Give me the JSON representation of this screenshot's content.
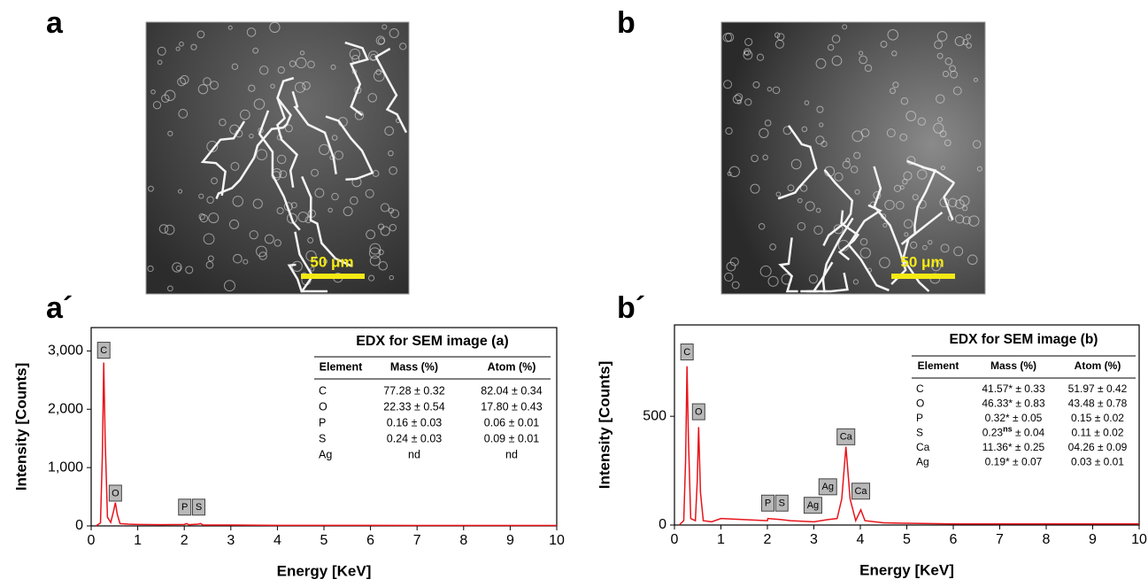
{
  "panels": [
    "a",
    "b",
    "a´",
    "b´"
  ],
  "sem_images": [
    {
      "scale_bar": "50 μm"
    },
    {
      "scale_bar": "50 μm"
    }
  ],
  "chart_data": [
    {
      "type": "line",
      "x_label": "Energy [KeV]",
      "y_label": "Intensity [Counts]",
      "color": "#e8141b",
      "x": [
        0.1,
        0.2,
        0.24,
        0.27,
        0.3,
        0.35,
        0.42,
        0.48,
        0.52,
        0.56,
        0.62,
        0.8,
        1.0,
        1.5,
        2.0,
        2.05,
        2.1,
        2.3,
        2.35,
        2.4,
        3,
        4,
        5,
        6,
        7,
        8,
        9,
        10
      ],
      "values": [
        0,
        50,
        1200,
        2800,
        1500,
        150,
        60,
        250,
        400,
        200,
        40,
        30,
        25,
        20,
        25,
        40,
        20,
        30,
        40,
        15,
        15,
        10,
        10,
        10,
        8,
        8,
        8,
        8
      ],
      "xlim": [
        0,
        10
      ],
      "xticks": [
        0,
        1,
        2,
        3,
        4,
        5,
        6,
        7,
        8,
        9,
        10
      ],
      "ylim": [
        0,
        3400
      ],
      "yticks": [
        0,
        {
          "value": 1000,
          "label": "1,000"
        },
        {
          "value": 2000,
          "label": "2,000"
        },
        {
          "value": 3000,
          "label": "3,000"
        }
      ],
      "annotations": [
        {
          "text": "C",
          "x": 0.27,
          "y": 2860
        },
        {
          "text": "O",
          "x": 0.52,
          "y": 410
        },
        {
          "text": "P",
          "x": 2.01,
          "y": 170
        },
        {
          "text": "S",
          "x": 2.31,
          "y": 170
        }
      ],
      "table": {
        "title": "EDX for SEM image (a)",
        "columns": [
          "Element",
          "Mass (%)",
          "Atom (%)"
        ],
        "rows": [
          [
            "C",
            "77.28 ± 0.32",
            "82.04 ± 0.34"
          ],
          [
            "O",
            "22.33 ± 0.54",
            "17.80 ± 0.43"
          ],
          [
            "P",
            "0.16 ± 0.03",
            "0.06 ± 0.01"
          ],
          [
            "S",
            "0.24 ± 0.03",
            "0.09 ± 0.01"
          ],
          [
            "Ag",
            "nd",
            "nd"
          ]
        ]
      }
    },
    {
      "type": "line",
      "x_label": "Energy [KeV]",
      "y_label": "Intensity [Counts]",
      "color": "#e8141b",
      "x": [
        0.1,
        0.2,
        0.24,
        0.27,
        0.3,
        0.35,
        0.45,
        0.49,
        0.52,
        0.56,
        0.62,
        0.8,
        1.0,
        1.5,
        2.0,
        2.01,
        2.3,
        2.5,
        3.0,
        3.3,
        3.5,
        3.6,
        3.69,
        3.78,
        3.9,
        4.01,
        4.1,
        4.5,
        5,
        6,
        7,
        8,
        9,
        10
      ],
      "values": [
        0,
        20,
        300,
        730,
        400,
        30,
        20,
        200,
        450,
        150,
        20,
        15,
        30,
        25,
        20,
        30,
        25,
        20,
        15,
        25,
        30,
        120,
        360,
        120,
        20,
        70,
        20,
        10,
        8,
        5,
        5,
        5,
        5,
        5
      ],
      "xlim": [
        0,
        10
      ],
      "xticks": [
        0,
        1,
        2,
        3,
        4,
        5,
        6,
        7,
        8,
        9,
        10
      ],
      "ylim": [
        0,
        920
      ],
      "yticks": [
        0,
        500
      ],
      "annotations": [
        {
          "text": "C",
          "x": 0.27,
          "y": 755
        },
        {
          "text": "O",
          "x": 0.52,
          "y": 480
        },
        {
          "text": "P",
          "x": 2.01,
          "y": 60
        },
        {
          "text": "S",
          "x": 2.31,
          "y": 60
        },
        {
          "text": "Ag",
          "x": 2.98,
          "y": 50
        },
        {
          "text": "Ag",
          "x": 3.3,
          "y": 135
        },
        {
          "text": "Ca",
          "x": 3.69,
          "y": 365
        },
        {
          "text": "Ca",
          "x": 4.01,
          "y": 115
        }
      ],
      "table": {
        "title": "EDX for SEM image (b)",
        "columns": [
          "Element",
          "Mass (%)",
          "Atom (%)"
        ],
        "rows": [
          [
            "C",
            "41.57* ± 0.33",
            "51.97 ± 0.42"
          ],
          [
            "O",
            "46.33* ± 0.83",
            "43.48 ± 0.78"
          ],
          [
            "P",
            "0.32* ± 0.05",
            "0.15 ± 0.02"
          ],
          [
            "S",
            [
              "0.23",
              "ns",
              " ± 0.04"
            ],
            "0.11 ± 0.02"
          ],
          [
            "Ca",
            "11.36* ± 0.25",
            "04.26 ± 0.09"
          ],
          [
            "Ag",
            "0.19* ± 0.07",
            "0.03 ± 0.01"
          ]
        ]
      }
    }
  ]
}
